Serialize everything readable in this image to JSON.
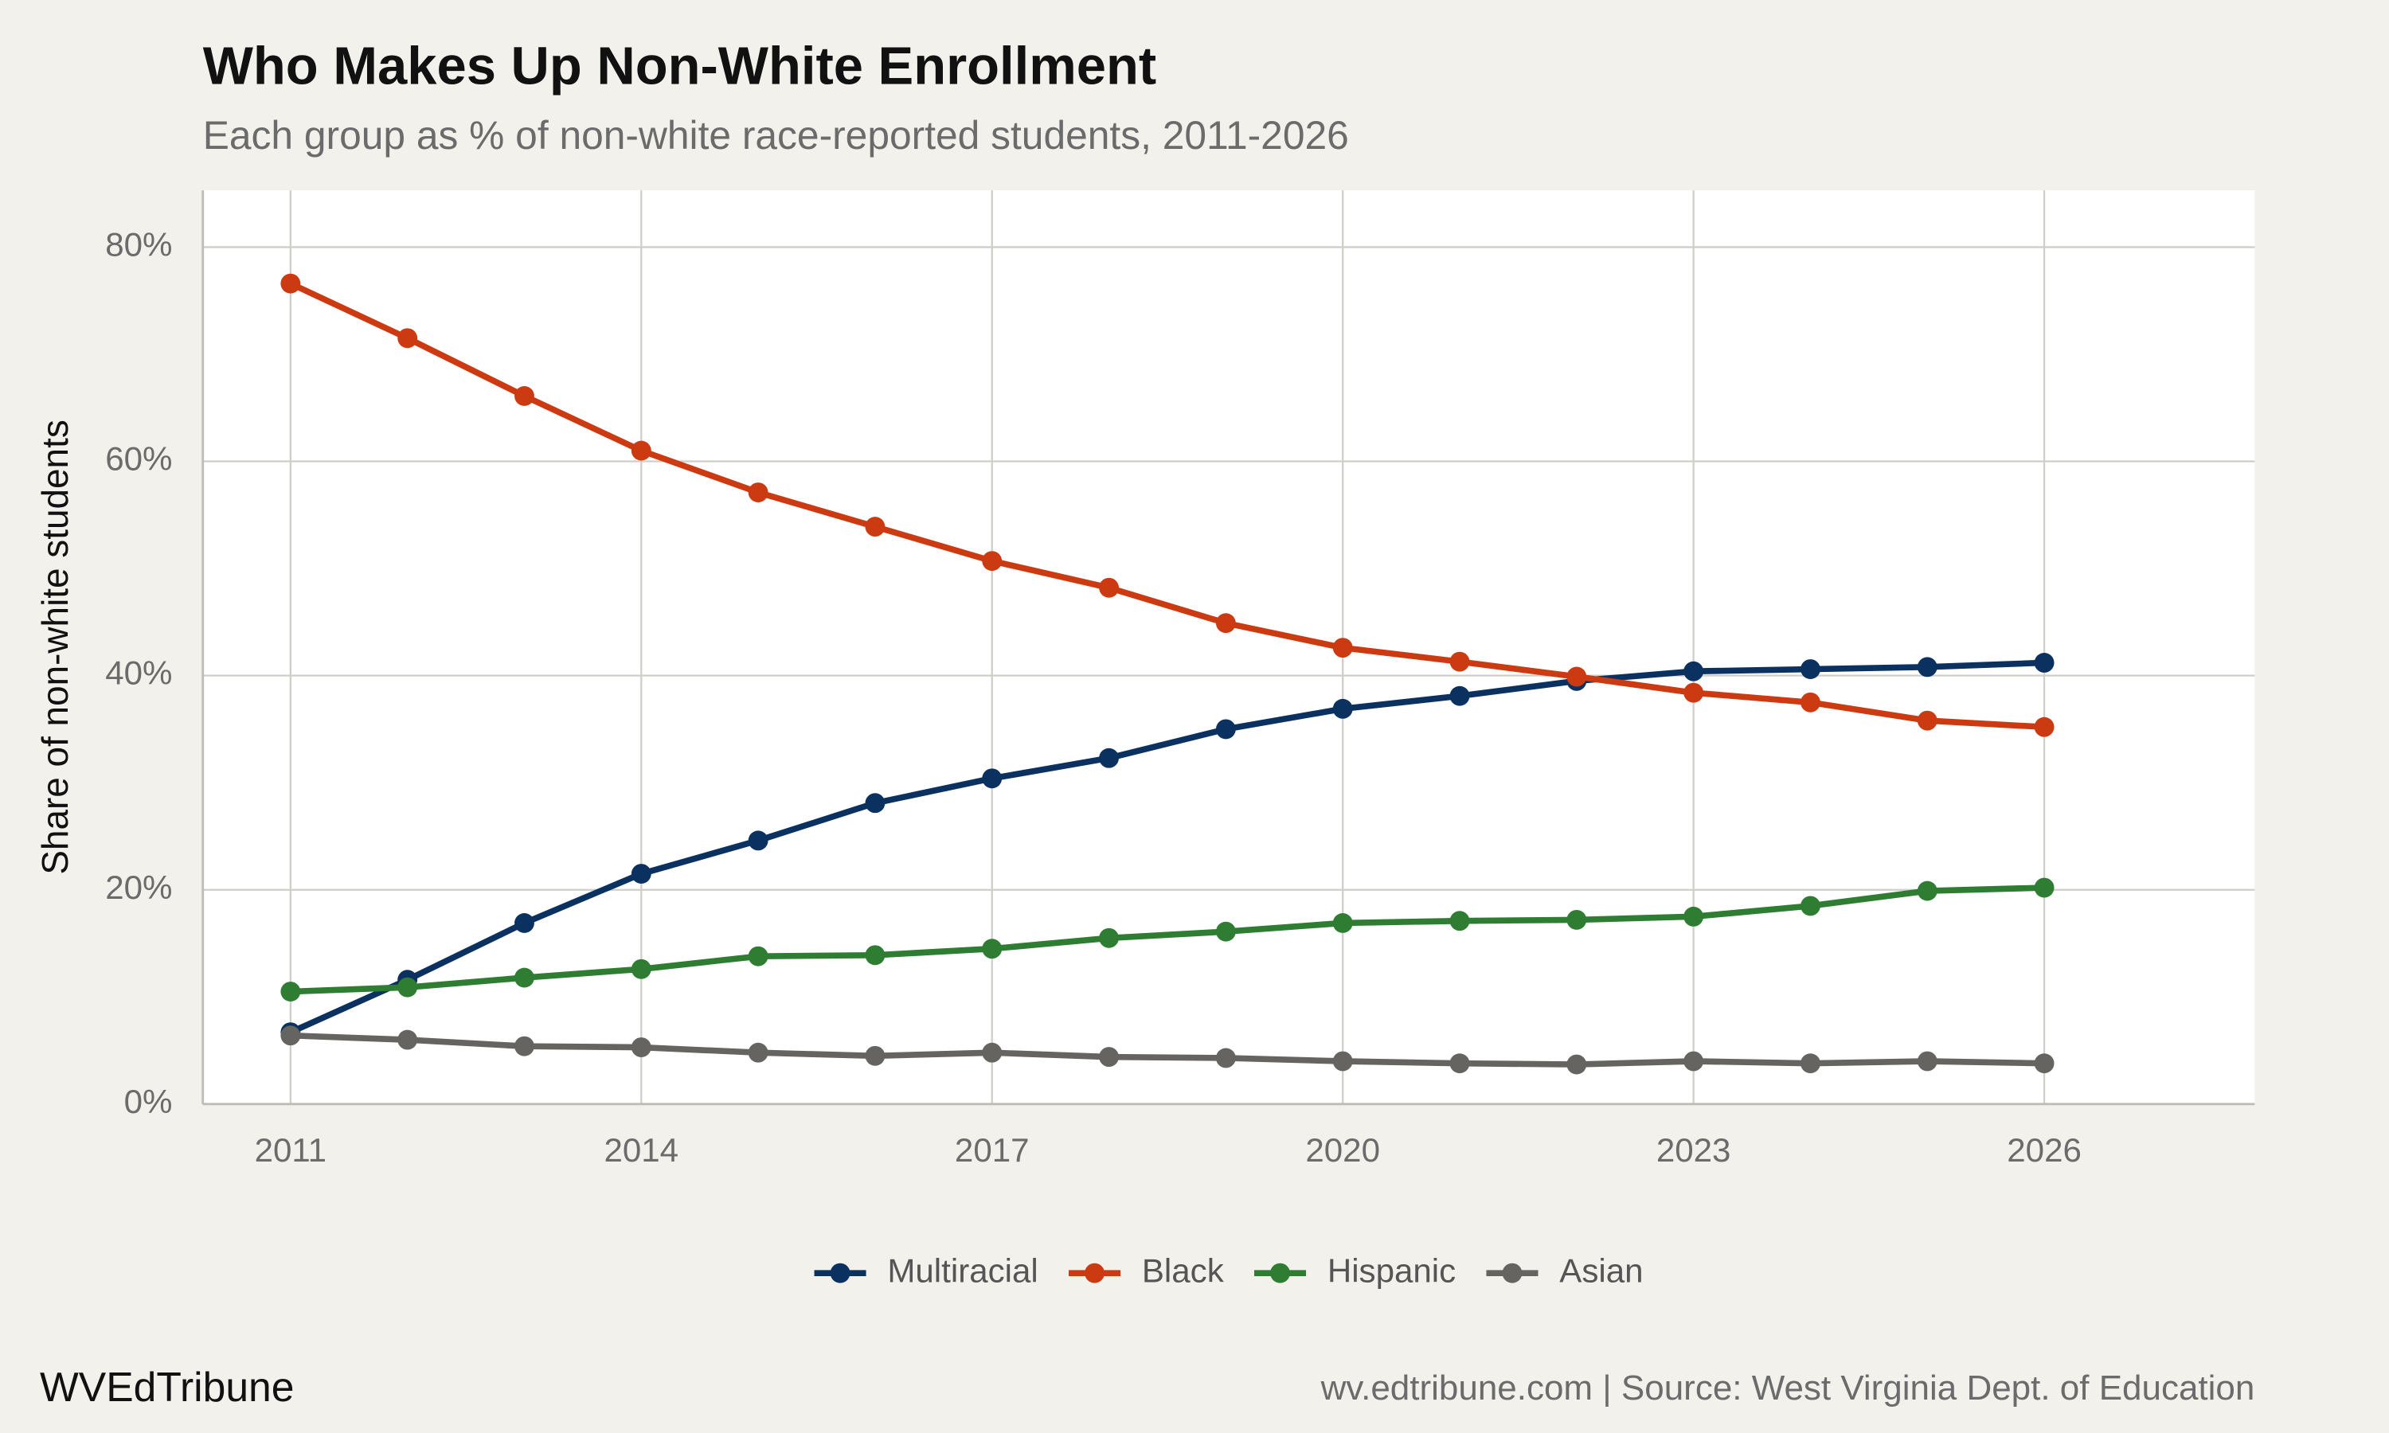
{
  "chart_data": {
    "type": "line",
    "title": "Who Makes Up Non-White Enrollment",
    "subtitle": "Each group as % of non-white race-reported students, 2011-2026",
    "ylabel": "Share of non-white students",
    "source": "wv.edtribune.com | Source: West Virginia Dept. of Education",
    "brand": "WVEdTribune",
    "x": [
      2011,
      2012,
      2013,
      2014,
      2015,
      2016,
      2017,
      2018,
      2019,
      2020,
      2021,
      2022,
      2023,
      2024,
      2025,
      2026
    ],
    "series": [
      {
        "name": "Multiracial",
        "color": "#0b3160",
        "values": [
          6.7,
          11.6,
          16.9,
          21.5,
          24.6,
          28.1,
          30.4,
          32.3,
          35.0,
          36.9,
          38.1,
          39.5,
          40.4,
          40.6,
          40.8,
          41.2
        ]
      },
      {
        "name": "Black",
        "color": "#cc3a12",
        "values": [
          76.6,
          71.5,
          66.1,
          61.0,
          57.1,
          53.9,
          50.7,
          48.2,
          44.9,
          42.6,
          41.3,
          39.9,
          38.4,
          37.5,
          35.8,
          35.2
        ]
      },
      {
        "name": "Hispanic",
        "color": "#2e7d32",
        "values": [
          10.5,
          10.9,
          11.8,
          12.6,
          13.8,
          13.9,
          14.5,
          15.5,
          16.1,
          16.9,
          17.1,
          17.2,
          17.5,
          18.5,
          19.9,
          20.2
        ]
      },
      {
        "name": "Asian",
        "color": "#666460",
        "values": [
          6.4,
          6.0,
          5.4,
          5.3,
          4.8,
          4.5,
          4.8,
          4.4,
          4.3,
          4.0,
          3.8,
          3.7,
          4.0,
          3.8,
          4.0,
          3.8
        ]
      }
    ],
    "xlim": [
      2010.25,
      2027.8
    ],
    "xticks": [
      2011,
      2014,
      2017,
      2020,
      2023,
      2026
    ],
    "ylim": [
      0,
      85.3
    ],
    "yticks": [
      {
        "value": 0,
        "label": "0%"
      },
      {
        "value": 20,
        "label": "20%"
      },
      {
        "value": 40,
        "label": "40%"
      },
      {
        "value": 60,
        "label": "60%"
      },
      {
        "value": 80,
        "label": "80%"
      }
    ],
    "grid": true,
    "legend": "bottom"
  }
}
